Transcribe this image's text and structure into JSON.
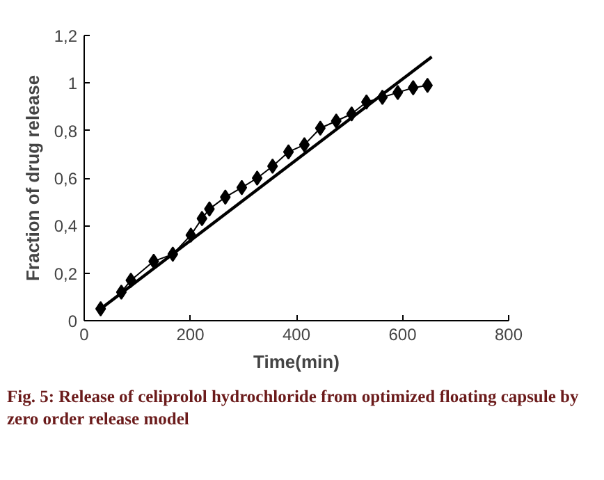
{
  "chart_data": {
    "type": "line",
    "xlabel": "Time(min)",
    "ylabel": "Fraction of drug release",
    "xlim": [
      0,
      800
    ],
    "ylim": [
      0,
      1.2
    ],
    "xticks": [
      0,
      200,
      400,
      600,
      800
    ],
    "yticks": [
      0,
      {
        "value": 0.2,
        "label": "0,2"
      },
      {
        "value": 0.4,
        "label": "0,4"
      },
      {
        "value": 0.6,
        "label": "0,6"
      },
      {
        "value": 0.8,
        "label": "0,8"
      },
      1,
      {
        "value": 1.2,
        "label": "1,2"
      }
    ],
    "grid": false,
    "series": [
      {
        "color": "#000000",
        "marker": "diamond",
        "line_style": "solid",
        "x": [
          31,
          70,
          88,
          131,
          167,
          201,
          222,
          236,
          266,
          297,
          326,
          355,
          385,
          415,
          445,
          475,
          504,
          532,
          562,
          591,
          620,
          647
        ],
        "values": [
          0.05,
          0.12,
          0.17,
          0.25,
          0.28,
          0.36,
          0.43,
          0.47,
          0.52,
          0.56,
          0.6,
          0.65,
          0.71,
          0.74,
          0.81,
          0.84,
          0.87,
          0.92,
          0.94,
          0.96,
          0.98,
          0.99
        ]
      },
      {
        "color": "#000000",
        "marker": "none",
        "line_style": "solid",
        "x": [
          31,
          655
        ],
        "values": [
          0.05,
          1.11
        ]
      }
    ],
    "annotations": [
      "Fig. 5: Release of celiprolol hydrochloride from optimized floating capsule by zero order release model"
    ]
  }
}
